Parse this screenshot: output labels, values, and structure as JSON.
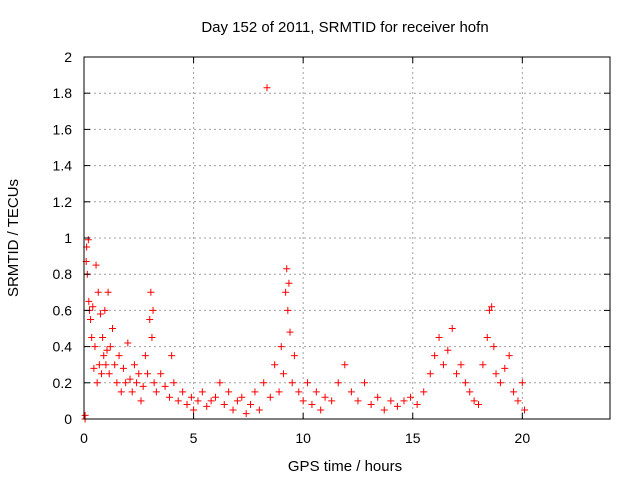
{
  "chart_data": {
    "type": "scatter",
    "title": "Day 152 of 2011, SRMTID for receiver hofn",
    "xlabel": "GPS time / hours",
    "ylabel": "SRMTID / TECUs",
    "xlim": [
      0,
      24
    ],
    "ylim": [
      0,
      2
    ],
    "xticks": [
      0,
      5,
      10,
      15,
      20
    ],
    "yticks": [
      0,
      0.2,
      0.4,
      0.6,
      0.8,
      1,
      1.2,
      1.4,
      1.6,
      1.8,
      2
    ],
    "grid": true,
    "legend": "none",
    "marker": "+",
    "color": "#ff0000",
    "series": [
      {
        "points": [
          [
            0.05,
            0.02
          ],
          [
            0.05,
            0.0
          ],
          [
            0.1,
            0.87
          ],
          [
            0.12,
            0.95
          ],
          [
            0.15,
            0.8
          ],
          [
            0.2,
            0.99
          ],
          [
            0.22,
            0.65
          ],
          [
            0.25,
            0.6
          ],
          [
            0.3,
            0.55
          ],
          [
            0.35,
            0.45
          ],
          [
            0.4,
            0.62
          ],
          [
            0.45,
            0.28
          ],
          [
            0.5,
            0.4
          ],
          [
            0.55,
            0.85
          ],
          [
            0.6,
            0.2
          ],
          [
            0.65,
            0.7
          ],
          [
            0.7,
            0.3
          ],
          [
            0.75,
            0.58
          ],
          [
            0.8,
            0.25
          ],
          [
            0.85,
            0.45
          ],
          [
            0.9,
            0.35
          ],
          [
            0.95,
            0.6
          ],
          [
            1.0,
            0.3
          ],
          [
            1.05,
            0.38
          ],
          [
            1.1,
            0.7
          ],
          [
            1.15,
            0.25
          ],
          [
            1.2,
            0.4
          ],
          [
            1.3,
            0.5
          ],
          [
            1.4,
            0.3
          ],
          [
            1.5,
            0.2
          ],
          [
            1.6,
            0.35
          ],
          [
            1.7,
            0.15
          ],
          [
            1.8,
            0.28
          ],
          [
            1.9,
            0.2
          ],
          [
            2.0,
            0.42
          ],
          [
            2.1,
            0.22
          ],
          [
            2.2,
            0.15
          ],
          [
            2.3,
            0.3
          ],
          [
            2.4,
            0.2
          ],
          [
            2.5,
            0.25
          ],
          [
            2.6,
            0.1
          ],
          [
            2.7,
            0.18
          ],
          [
            2.8,
            0.35
          ],
          [
            2.9,
            0.25
          ],
          [
            3.0,
            0.55
          ],
          [
            3.05,
            0.7
          ],
          [
            3.1,
            0.45
          ],
          [
            3.15,
            0.6
          ],
          [
            3.2,
            0.2
          ],
          [
            3.3,
            0.15
          ],
          [
            3.5,
            0.25
          ],
          [
            3.7,
            0.18
          ],
          [
            3.9,
            0.12
          ],
          [
            4.0,
            0.35
          ],
          [
            4.1,
            0.2
          ],
          [
            4.3,
            0.1
          ],
          [
            4.5,
            0.15
          ],
          [
            4.7,
            0.08
          ],
          [
            4.9,
            0.12
          ],
          [
            5.0,
            0.05
          ],
          [
            5.2,
            0.1
          ],
          [
            5.4,
            0.15
          ],
          [
            5.6,
            0.07
          ],
          [
            5.8,
            0.1
          ],
          [
            6.0,
            0.12
          ],
          [
            6.2,
            0.2
          ],
          [
            6.4,
            0.08
          ],
          [
            6.6,
            0.15
          ],
          [
            6.8,
            0.05
          ],
          [
            7.0,
            0.1
          ],
          [
            7.2,
            0.12
          ],
          [
            7.4,
            0.03
          ],
          [
            7.6,
            0.08
          ],
          [
            7.8,
            0.15
          ],
          [
            8.0,
            0.05
          ],
          [
            8.2,
            0.2
          ],
          [
            8.35,
            1.83
          ],
          [
            8.5,
            0.12
          ],
          [
            8.7,
            0.3
          ],
          [
            8.9,
            0.15
          ],
          [
            9.0,
            0.4
          ],
          [
            9.1,
            0.25
          ],
          [
            9.2,
            0.7
          ],
          [
            9.25,
            0.83
          ],
          [
            9.3,
            0.6
          ],
          [
            9.35,
            0.75
          ],
          [
            9.4,
            0.48
          ],
          [
            9.5,
            0.2
          ],
          [
            9.6,
            0.35
          ],
          [
            9.8,
            0.15
          ],
          [
            10.0,
            0.1
          ],
          [
            10.2,
            0.2
          ],
          [
            10.4,
            0.08
          ],
          [
            10.6,
            0.15
          ],
          [
            10.8,
            0.05
          ],
          [
            11.0,
            0.12
          ],
          [
            11.3,
            0.1
          ],
          [
            11.6,
            0.2
          ],
          [
            11.9,
            0.3
          ],
          [
            12.2,
            0.15
          ],
          [
            12.5,
            0.1
          ],
          [
            12.8,
            0.2
          ],
          [
            13.1,
            0.08
          ],
          [
            13.4,
            0.12
          ],
          [
            13.7,
            0.05
          ],
          [
            14.0,
            0.1
          ],
          [
            14.3,
            0.07
          ],
          [
            14.6,
            0.1
          ],
          [
            14.9,
            0.12
          ],
          [
            15.2,
            0.08
          ],
          [
            15.5,
            0.15
          ],
          [
            15.8,
            0.25
          ],
          [
            16.0,
            0.35
          ],
          [
            16.2,
            0.45
          ],
          [
            16.4,
            0.3
          ],
          [
            16.6,
            0.38
          ],
          [
            16.8,
            0.5
          ],
          [
            17.0,
            0.25
          ],
          [
            17.2,
            0.3
          ],
          [
            17.4,
            0.2
          ],
          [
            17.6,
            0.15
          ],
          [
            17.8,
            0.1
          ],
          [
            18.0,
            0.08
          ],
          [
            18.2,
            0.3
          ],
          [
            18.4,
            0.45
          ],
          [
            18.5,
            0.6
          ],
          [
            18.6,
            0.62
          ],
          [
            18.7,
            0.4
          ],
          [
            18.8,
            0.25
          ],
          [
            19.0,
            0.2
          ],
          [
            19.2,
            0.28
          ],
          [
            19.4,
            0.35
          ],
          [
            19.6,
            0.15
          ],
          [
            19.8,
            0.1
          ],
          [
            20.0,
            0.2
          ],
          [
            20.1,
            0.05
          ]
        ]
      }
    ]
  }
}
